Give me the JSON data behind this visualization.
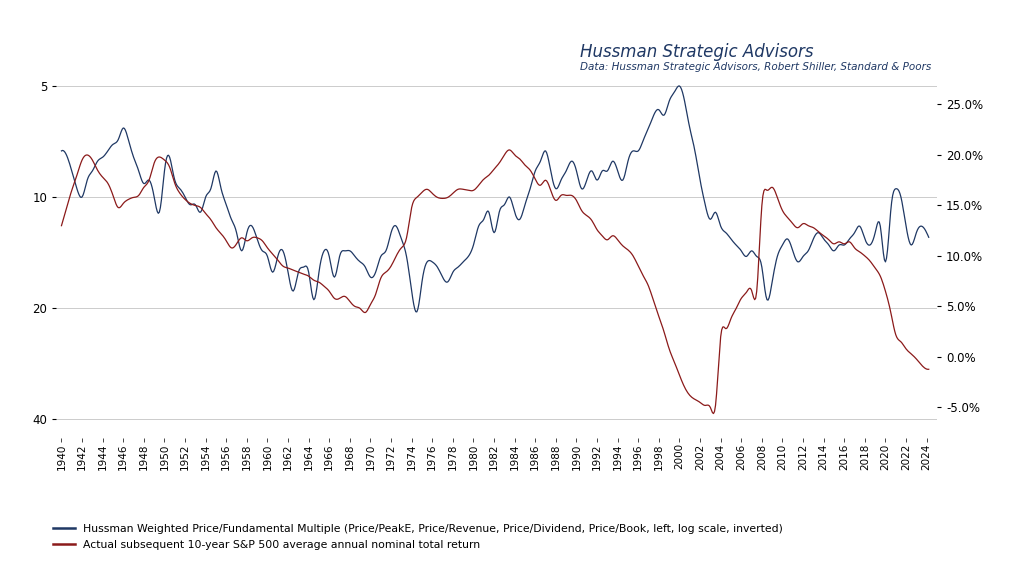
{
  "title": "Hussman Strategic Advisors",
  "subtitle": "Data: Hussman Strategic Advisors, Robert Shiller, Standard & Poors",
  "legend1": "Hussman Weighted Price/Fundamental Multiple (Price/PeakE, Price/Revenue, Price/Dividend, Price/Book, left, log scale, inverted)",
  "legend2": "Actual subsequent 10-year S&P 500 average annual nominal total return",
  "color_blue": "#1F3864",
  "color_red": "#8B1A1A",
  "bg_color": "#FFFFFF",
  "grid_color": "#CCCCCC",
  "left_yticks": [
    5.0,
    10.0,
    20.0,
    40.0
  ],
  "right_yticks": [
    0.25,
    0.2,
    0.15,
    0.1,
    0.05,
    0.0,
    -0.05
  ],
  "hussman_kp_years": [
    1940.0,
    1941.0,
    1941.5,
    1942.0,
    1942.5,
    1943.0,
    1943.5,
    1944.0,
    1944.5,
    1945.0,
    1945.5,
    1946.0,
    1946.5,
    1947.0,
    1947.5,
    1948.0,
    1948.5,
    1949.0,
    1949.5,
    1950.0,
    1950.5,
    1951.0,
    1951.5,
    1952.0,
    1952.5,
    1953.0,
    1953.5,
    1954.0,
    1954.5,
    1955.0,
    1955.5,
    1956.0,
    1956.5,
    1957.0,
    1957.5,
    1958.0,
    1958.5,
    1959.0,
    1959.5,
    1960.0,
    1960.5,
    1961.0,
    1961.5,
    1962.0,
    1962.5,
    1963.0,
    1963.5,
    1964.0,
    1964.5,
    1965.0,
    1965.5,
    1966.0,
    1966.5,
    1967.0,
    1967.5,
    1968.0,
    1968.5,
    1969.0,
    1969.5,
    1970.0,
    1970.5,
    1971.0,
    1971.5,
    1972.0,
    1972.5,
    1973.0,
    1973.5,
    1974.0,
    1974.5,
    1975.0,
    1975.5,
    1976.0,
    1976.5,
    1977.0,
    1977.5,
    1978.0,
    1978.5,
    1979.0,
    1979.5,
    1980.0,
    1980.5,
    1981.0,
    1981.5,
    1982.0,
    1982.5,
    1983.0,
    1983.5,
    1984.0,
    1984.5,
    1985.0,
    1985.5,
    1986.0,
    1986.5,
    1987.0,
    1987.5,
    1988.0,
    1988.5,
    1989.0,
    1989.5,
    1990.0,
    1990.5,
    1991.0,
    1991.5,
    1992.0,
    1992.5,
    1993.0,
    1993.5,
    1994.0,
    1994.5,
    1995.0,
    1995.5,
    1996.0,
    1996.5,
    1997.0,
    1997.5,
    1998.0,
    1998.5,
    1999.0,
    1999.5,
    2000.0,
    2000.5,
    2001.0,
    2001.5,
    2002.0,
    2002.5,
    2003.0,
    2003.5,
    2004.0,
    2004.5,
    2005.0,
    2005.5,
    2006.0,
    2006.5,
    2007.0,
    2007.5,
    2008.0,
    2008.5,
    2009.0,
    2009.5,
    2010.0,
    2010.5,
    2011.0,
    2011.5,
    2012.0,
    2012.5,
    2013.0,
    2013.5,
    2014.0,
    2014.5,
    2015.0,
    2015.5,
    2016.0,
    2016.5,
    2017.0,
    2017.5,
    2018.0,
    2018.5,
    2019.0,
    2019.5,
    2020.0,
    2020.5,
    2021.0,
    2021.5,
    2022.0,
    2022.5,
    2023.0,
    2023.5,
    2024.0
  ],
  "hussman_kp_vals": [
    7.5,
    8.5,
    9.5,
    10.0,
    9.0,
    8.5,
    8.0,
    7.8,
    7.5,
    7.2,
    7.0,
    6.5,
    7.0,
    7.8,
    8.5,
    9.2,
    9.0,
    10.0,
    11.0,
    8.5,
    7.8,
    9.0,
    9.5,
    10.0,
    10.5,
    10.5,
    11.0,
    10.0,
    9.5,
    8.5,
    9.5,
    10.5,
    11.5,
    12.5,
    14.0,
    12.5,
    12.0,
    13.0,
    14.0,
    14.5,
    16.0,
    14.5,
    14.0,
    16.0,
    18.0,
    16.0,
    15.5,
    16.0,
    19.0,
    16.0,
    14.0,
    14.5,
    16.5,
    14.5,
    14.0,
    14.0,
    14.5,
    15.0,
    15.5,
    16.5,
    16.0,
    14.5,
    14.0,
    12.5,
    12.0,
    13.0,
    14.5,
    18.0,
    20.5,
    17.0,
    15.0,
    15.0,
    15.5,
    16.5,
    17.0,
    16.0,
    15.5,
    15.0,
    14.5,
    13.5,
    12.0,
    11.5,
    11.0,
    12.5,
    11.0,
    10.5,
    10.0,
    11.0,
    11.5,
    10.5,
    9.5,
    8.5,
    8.0,
    7.5,
    8.5,
    9.5,
    9.0,
    8.5,
    8.0,
    8.5,
    9.5,
    9.0,
    8.5,
    9.0,
    8.5,
    8.5,
    8.0,
    8.5,
    9.0,
    8.0,
    7.5,
    7.5,
    7.0,
    6.5,
    6.0,
    5.8,
    6.0,
    5.5,
    5.2,
    5.0,
    5.5,
    6.5,
    7.5,
    9.0,
    10.5,
    11.5,
    11.0,
    12.0,
    12.5,
    13.0,
    13.5,
    14.0,
    14.5,
    14.0,
    14.5,
    15.5,
    19.0,
    17.0,
    14.5,
    13.5,
    13.0,
    14.0,
    15.0,
    14.5,
    14.0,
    13.0,
    12.5,
    13.0,
    13.5,
    14.0,
    13.5,
    13.5,
    13.0,
    12.5,
    12.0,
    13.0,
    13.5,
    12.5,
    12.0,
    15.0,
    11.0,
    9.5,
    10.0,
    12.0,
    13.5,
    12.5,
    12.0,
    12.5
  ],
  "returns_kp_years": [
    1940.0,
    1940.5,
    1941.0,
    1941.5,
    1942.0,
    1942.5,
    1943.0,
    1943.5,
    1944.0,
    1944.5,
    1945.0,
    1945.5,
    1946.0,
    1946.5,
    1947.0,
    1947.5,
    1948.0,
    1948.5,
    1949.0,
    1949.5,
    1950.0,
    1950.5,
    1951.0,
    1951.5,
    1952.0,
    1952.5,
    1953.0,
    1953.5,
    1954.0,
    1954.5,
    1955.0,
    1955.5,
    1956.0,
    1956.5,
    1957.0,
    1957.5,
    1958.0,
    1958.5,
    1959.0,
    1959.5,
    1960.0,
    1960.5,
    1961.0,
    1961.5,
    1962.0,
    1962.5,
    1963.0,
    1963.5,
    1964.0,
    1964.5,
    1965.0,
    1965.5,
    1966.0,
    1966.5,
    1967.0,
    1967.5,
    1968.0,
    1968.5,
    1969.0,
    1969.5,
    1970.0,
    1970.5,
    1971.0,
    1971.5,
    1972.0,
    1972.5,
    1973.0,
    1973.5,
    1974.0,
    1974.5,
    1975.0,
    1975.5,
    1976.0,
    1976.5,
    1977.0,
    1977.5,
    1978.0,
    1978.5,
    1979.0,
    1979.5,
    1980.0,
    1980.5,
    1981.0,
    1981.5,
    1982.0,
    1982.5,
    1983.0,
    1983.5,
    1984.0,
    1984.5,
    1985.0,
    1985.5,
    1986.0,
    1986.5,
    1987.0,
    1987.5,
    1988.0,
    1988.5,
    1989.0,
    1989.5,
    1990.0,
    1990.5,
    1991.0,
    1991.5,
    1992.0,
    1992.5,
    1993.0,
    1993.5,
    1994.0,
    1994.5,
    1995.0,
    1995.5,
    1996.0,
    1996.5,
    1997.0,
    1997.5,
    1998.0,
    1998.5,
    1999.0,
    1999.5,
    2000.0,
    2000.5,
    2001.0,
    2001.5,
    2002.0,
    2002.5,
    2003.0,
    2003.5,
    2004.0,
    2004.5,
    2005.0,
    2005.5,
    2006.0,
    2006.5,
    2007.0,
    2007.5,
    2008.0,
    2008.5,
    2009.0,
    2009.5,
    2010.0,
    2010.5,
    2011.0,
    2011.5,
    2012.0,
    2012.5,
    2013.0,
    2013.5,
    2014.0,
    2014.5,
    2015.0,
    2015.5,
    2016.0,
    2016.5,
    2017.0,
    2017.5,
    2018.0,
    2018.5,
    2019.0,
    2019.5,
    2020.0,
    2020.5,
    2021.0,
    2021.5,
    2022.0,
    2022.5,
    2023.0,
    2023.5,
    2024.0
  ],
  "returns_kp_vals": [
    0.13,
    0.148,
    0.165,
    0.18,
    0.195,
    0.2,
    0.195,
    0.185,
    0.178,
    0.172,
    0.16,
    0.148,
    0.152,
    0.156,
    0.158,
    0.16,
    0.168,
    0.175,
    0.192,
    0.198,
    0.195,
    0.188,
    0.172,
    0.162,
    0.156,
    0.152,
    0.15,
    0.148,
    0.142,
    0.136,
    0.128,
    0.122,
    0.115,
    0.108,
    0.112,
    0.118,
    0.115,
    0.118,
    0.118,
    0.115,
    0.108,
    0.102,
    0.096,
    0.09,
    0.088,
    0.086,
    0.084,
    0.082,
    0.08,
    0.076,
    0.074,
    0.07,
    0.065,
    0.058,
    0.058,
    0.06,
    0.055,
    0.05,
    0.048,
    0.044,
    0.052,
    0.062,
    0.078,
    0.084,
    0.09,
    0.1,
    0.108,
    0.118,
    0.148,
    0.158,
    0.163,
    0.166,
    0.162,
    0.158,
    0.157,
    0.158,
    0.162,
    0.166,
    0.166,
    0.165,
    0.165,
    0.17,
    0.176,
    0.18,
    0.186,
    0.192,
    0.2,
    0.205,
    0.2,
    0.196,
    0.19,
    0.185,
    0.176,
    0.17,
    0.175,
    0.165,
    0.155,
    0.16,
    0.16,
    0.16,
    0.155,
    0.145,
    0.14,
    0.135,
    0.126,
    0.12,
    0.116,
    0.12,
    0.116,
    0.11,
    0.106,
    0.1,
    0.09,
    0.08,
    0.07,
    0.055,
    0.04,
    0.025,
    0.008,
    -0.005,
    -0.018,
    -0.03,
    -0.038,
    -0.042,
    -0.045,
    -0.048,
    -0.05,
    -0.048,
    0.02,
    0.028,
    0.038,
    0.048,
    0.058,
    0.064,
    0.066,
    0.065,
    0.15,
    0.165,
    0.168,
    0.158,
    0.145,
    0.138,
    0.132,
    0.128,
    0.132,
    0.13,
    0.128,
    0.124,
    0.12,
    0.116,
    0.112,
    0.114,
    0.112,
    0.114,
    0.108,
    0.104,
    0.1,
    0.095,
    0.088,
    0.08,
    0.065,
    0.045,
    0.022,
    0.015,
    0.008,
    0.003,
    -0.002,
    -0.008,
    -0.012
  ]
}
